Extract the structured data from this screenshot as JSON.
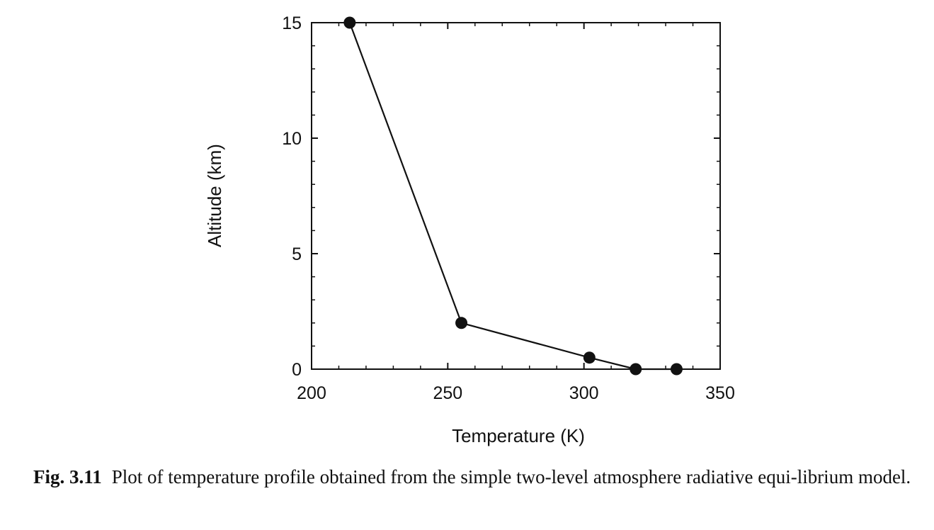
{
  "chart_data": {
    "type": "line",
    "title": "",
    "xlabel": "Temperature (K)",
    "ylabel": "Altitude (km)",
    "xlim": [
      200,
      350
    ],
    "ylim": [
      0,
      15
    ],
    "x_ticks": [
      "200",
      "250",
      "300",
      "350"
    ],
    "y_ticks": [
      "0",
      "5",
      "10",
      "15"
    ],
    "grid": false,
    "series": [
      {
        "x": [
          214,
          255,
          302,
          319,
          334
        ],
        "y": [
          15,
          2,
          0.5,
          0,
          0
        ],
        "marker": "circle",
        "color": "#111111"
      }
    ]
  },
  "caption": {
    "label": "Fig. 3.11",
    "text": "Plot of temperature profile obtained from the simple two-level atmosphere radiative equi-librium model."
  }
}
